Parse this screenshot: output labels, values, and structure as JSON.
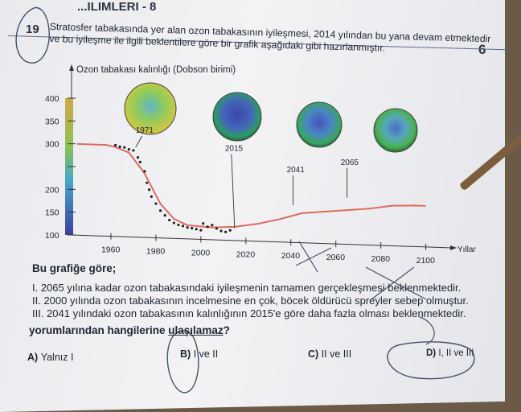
{
  "header": {
    "title": "...ILIMLERI - 8",
    "page_number": "6"
  },
  "question": {
    "number": "19",
    "stem_line1": "Stratosfer tabakasında yer alan ozon tabakasının iyileşmesi, 2014 yılından bu yana devam etmektedir",
    "stem_line2": "ve bu iyileşme ile ilgili beklentilere göre bir grafik aşağıdaki gibi hazırlanmıştır.",
    "intro": "Bu grafiğe göre;",
    "statements": [
      "I.  2065 yılına kadar ozon tabakasındaki iyileşmenin tamamen gerçekleşmesi beklenmektedir.",
      "II.  2000 yılında ozon tabakasının incelmesine en çok, böcek öldürücü spreyler sebep olmuştur.",
      "III. 2041 yılındaki ozon tabakasının kalınlığının 2015'e göre daha fazla olması beklenmektedir."
    ],
    "prompt_pre": "yorumlarından hangilerine ",
    "prompt_underlined": "ulaşılamaz",
    "prompt_post": "?",
    "options": [
      {
        "letter": "A)",
        "text": "Yalnız I"
      },
      {
        "letter": "B)",
        "text": "I ve II"
      },
      {
        "letter": "C)",
        "text": "II ve III"
      },
      {
        "letter": "D)",
        "text": "I, II ve III"
      }
    ]
  },
  "chart_data": {
    "type": "scatter",
    "title": "",
    "ylabel": "Ozon tabakası kalınlığı (Dobson birimi)",
    "xlabel": "Yıllar",
    "x_ticks": [
      1960,
      1980,
      2000,
      2020,
      2040,
      2060,
      2080,
      2100
    ],
    "y_ticks": [
      100,
      150,
      200,
      250,
      300,
      350,
      400
    ],
    "y_tick_labels": [
      "100",
      "150",
      "200",
      "",
      "300",
      "350",
      "400"
    ],
    "xlim": [
      1945,
      2108
    ],
    "ylim": [
      100,
      400
    ],
    "observed": [
      [
        1962,
        300
      ],
      [
        1964,
        297
      ],
      [
        1966,
        296
      ],
      [
        1968,
        292
      ],
      [
        1970,
        290
      ],
      [
        1972,
        275
      ],
      [
        1973,
        265
      ],
      [
        1975,
        245
      ],
      [
        1976,
        220
      ],
      [
        1977,
        205
      ],
      [
        1978,
        190
      ],
      [
        1980,
        175
      ],
      [
        1982,
        160
      ],
      [
        1984,
        150
      ],
      [
        1986,
        140
      ],
      [
        1988,
        134
      ],
      [
        1990,
        130
      ],
      [
        1992,
        128
      ],
      [
        1994,
        125
      ],
      [
        1996,
        124
      ],
      [
        1998,
        122
      ],
      [
        2000,
        120
      ],
      [
        2001,
        135
      ],
      [
        2003,
        128
      ],
      [
        2005,
        132
      ],
      [
        2007,
        125
      ],
      [
        2009,
        120
      ],
      [
        2011,
        118
      ],
      [
        2013,
        122
      ]
    ],
    "trend_line": [
      [
        1945,
        300
      ],
      [
        1958,
        300
      ],
      [
        1962,
        296
      ],
      [
        1968,
        285
      ],
      [
        1975,
        240
      ],
      [
        1982,
        175
      ],
      [
        1988,
        143
      ],
      [
        1994,
        130
      ],
      [
        2005,
        127
      ],
      [
        2015,
        130
      ],
      [
        2025,
        138
      ],
      [
        2035,
        150
      ],
      [
        2045,
        165
      ],
      [
        2055,
        170
      ],
      [
        2065,
        175
      ],
      [
        2075,
        180
      ],
      [
        2085,
        188
      ],
      [
        2095,
        190
      ],
      [
        2100,
        190
      ]
    ],
    "annotations": [
      {
        "label": "1971",
        "x": 1971,
        "y": 290
      },
      {
        "label": "2015",
        "x": 2015,
        "y": 120
      },
      {
        "label": "2041",
        "x": 2041,
        "y": 175
      },
      {
        "label": "2065",
        "x": 2065,
        "y": 195
      }
    ],
    "globe_colors": {
      "ozone_low": "#2d3e9c",
      "ozone_mid": "#3a9a52",
      "ozone_high": "#d9c83a",
      "trend": "#e06a5a",
      "color_bar_top": "#d4a64a",
      "color_bar_bottom": "#3b3fa0"
    }
  }
}
